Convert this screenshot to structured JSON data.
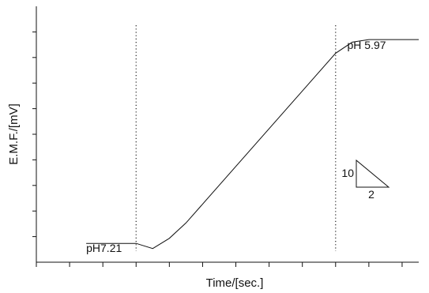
{
  "chart_data": {
    "type": "line",
    "title": "",
    "xlabel": "Time/[sec.]",
    "ylabel": "E.M.F./[mV]",
    "xlim": [
      0,
      23
    ],
    "ylim": [
      0,
      30
    ],
    "x_minor_ticks": [
      0,
      2,
      4,
      6,
      8,
      10,
      12,
      14,
      16,
      18,
      20,
      22
    ],
    "y_minor_ticks": [
      3,
      6,
      9,
      12,
      15,
      18,
      21,
      24,
      27
    ],
    "series": [
      {
        "points": [
          [
            3,
            2.2
          ],
          [
            6,
            2.2
          ],
          [
            7,
            1.6
          ],
          [
            8,
            2.8
          ],
          [
            9,
            4.6
          ],
          [
            18,
            24.5
          ],
          [
            19,
            25.8
          ],
          [
            20,
            26.1
          ],
          [
            23,
            26.1
          ]
        ]
      }
    ],
    "vertical_lines": [
      6,
      18
    ],
    "annotations": [
      {
        "text": "pH7.21",
        "x": 3,
        "y": 1.2
      },
      {
        "text": "pH 5.97",
        "x": 18.7,
        "y": 25.0
      }
    ],
    "scale_triangle": {
      "height_label": "10",
      "base_label": "2"
    },
    "grid": false
  }
}
